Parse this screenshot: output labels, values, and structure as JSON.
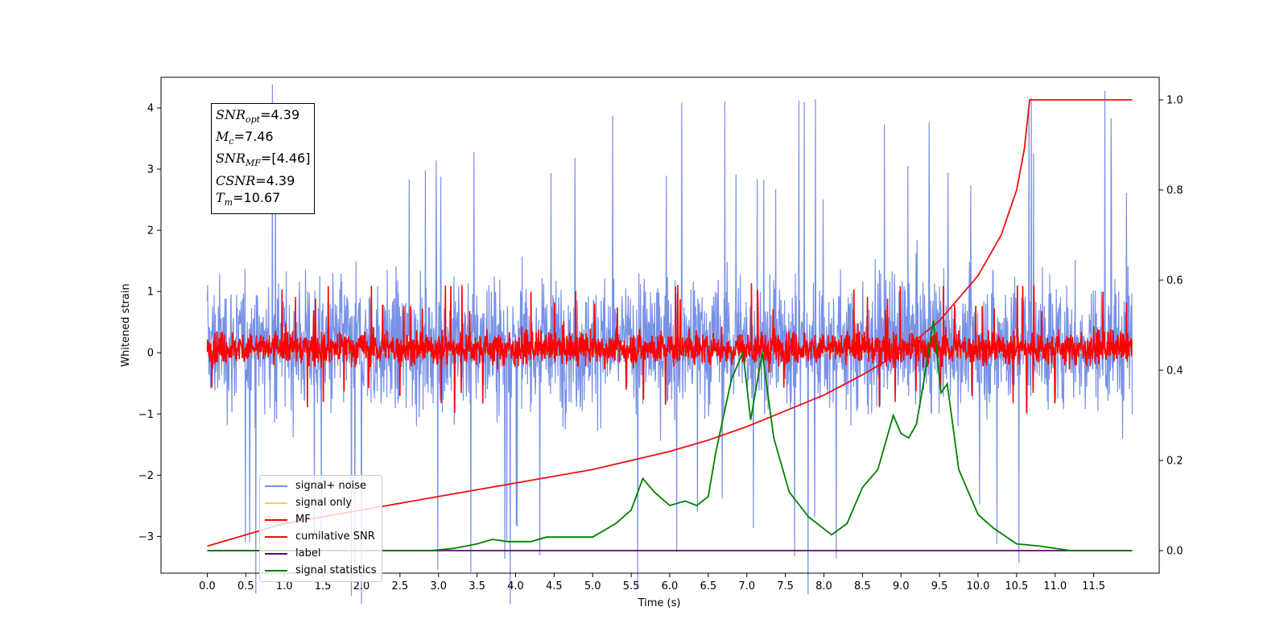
{
  "chart_data": {
    "type": "line",
    "xlabel": "Time (s)",
    "ylabel": "Whitened strain",
    "xlim": [
      -0.6,
      12.35
    ],
    "ylim": [
      -3.6,
      4.5
    ],
    "y2lim": [
      -0.05,
      1.05
    ],
    "x_ticks": [
      "0.0",
      "0.5",
      "1.0",
      "1.5",
      "2.0",
      "2.5",
      "3.0",
      "3.5",
      "4.0",
      "4.5",
      "5.0",
      "5.5",
      "6.0",
      "6.5",
      "7.0",
      "7.5",
      "8.0",
      "8.5",
      "9.0",
      "9.5",
      "10.0",
      "10.5",
      "11.0",
      "11.5"
    ],
    "y_ticks": [
      "4",
      "3",
      "2",
      "1",
      "0",
      "−1",
      "−2",
      "−3"
    ],
    "y2_ticks": [
      "1.0",
      "0.8",
      "0.6",
      "0.4",
      "0.2",
      "0.0"
    ],
    "series": [
      {
        "name": "signal+ noise",
        "color": "#7791e6",
        "axis": "left",
        "noise_band": [
          -1.5,
          1.8
        ],
        "x_range": [
          0.0,
          12.0
        ]
      },
      {
        "name": "signal only",
        "color": "#f5c86f",
        "axis": "left",
        "x_range": [
          0.0,
          12.0
        ],
        "values_approx": 0.0
      },
      {
        "name": "MF",
        "color": "#ff0000",
        "axis": "left",
        "noise_band": [
          -0.35,
          0.5
        ],
        "x_range": [
          0.0,
          12.0
        ]
      },
      {
        "name": "cumilative SNR",
        "color": "#ee1111",
        "axis": "right",
        "x": [
          0.0,
          1.0,
          2.0,
          3.0,
          4.0,
          5.0,
          6.0,
          6.5,
          7.0,
          7.5,
          8.0,
          8.5,
          9.0,
          9.5,
          10.0,
          10.3,
          10.5,
          10.6,
          10.67,
          12.0
        ],
        "y": [
          0.01,
          0.06,
          0.09,
          0.12,
          0.15,
          0.18,
          0.22,
          0.245,
          0.275,
          0.31,
          0.345,
          0.39,
          0.44,
          0.51,
          0.61,
          0.7,
          0.8,
          0.89,
          1.0,
          1.0
        ]
      },
      {
        "name": "label",
        "color": "#5b0d6e",
        "axis": "right",
        "x": [
          0.0,
          12.0
        ],
        "y": [
          0.0,
          0.0
        ]
      },
      {
        "name": "signal statistics",
        "color": "#008000",
        "axis": "right",
        "x": [
          0.0,
          1.0,
          2.0,
          2.9,
          3.2,
          3.5,
          3.7,
          3.9,
          4.2,
          4.4,
          4.6,
          4.8,
          5.0,
          5.3,
          5.5,
          5.65,
          5.8,
          6.0,
          6.2,
          6.35,
          6.5,
          6.6,
          6.8,
          6.95,
          7.05,
          7.2,
          7.35,
          7.55,
          7.8,
          8.1,
          8.3,
          8.5,
          8.7,
          8.9,
          9.0,
          9.1,
          9.2,
          9.3,
          9.42,
          9.52,
          9.6,
          9.75,
          10.0,
          10.2,
          10.5,
          10.8,
          11.2,
          12.0
        ],
        "y": [
          0.0,
          0.0,
          0.0,
          0.0,
          0.005,
          0.015,
          0.025,
          0.02,
          0.02,
          0.03,
          0.03,
          0.03,
          0.03,
          0.06,
          0.09,
          0.16,
          0.13,
          0.1,
          0.11,
          0.1,
          0.12,
          0.22,
          0.38,
          0.44,
          0.29,
          0.44,
          0.25,
          0.13,
          0.075,
          0.035,
          0.06,
          0.14,
          0.18,
          0.3,
          0.26,
          0.25,
          0.28,
          0.38,
          0.51,
          0.35,
          0.37,
          0.18,
          0.08,
          0.05,
          0.015,
          0.01,
          0.0,
          0.0
        ]
      }
    ],
    "legend_position": "lower left",
    "annotation": {
      "snr_opt": {
        "base": "SNR",
        "sub": "opt",
        "value": "=4.39"
      },
      "mc": {
        "base": "M",
        "sub": "c",
        "value": "=7.46"
      },
      "snr_mf": {
        "base": "SNR",
        "sub": "MF",
        "value": "=[4.46]"
      },
      "csnr": {
        "base": "CSNR",
        "sub": "",
        "value": "=4.39"
      },
      "tm": {
        "base": "T",
        "sub": "m",
        "value": "=10.67"
      }
    }
  }
}
